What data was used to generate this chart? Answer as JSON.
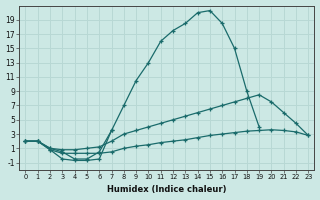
{
  "xlabel": "Humidex (Indice chaleur)",
  "background_color": "#cce8e4",
  "grid_color": "#b8d8d4",
  "line_color": "#1a6b6b",
  "ylim": [
    -2,
    21
  ],
  "xlim": [
    -0.5,
    23.5
  ],
  "yticks": [
    -1,
    1,
    3,
    5,
    7,
    9,
    11,
    13,
    15,
    17,
    19
  ],
  "xticks": [
    0,
    1,
    2,
    3,
    4,
    5,
    6,
    7,
    8,
    9,
    10,
    11,
    12,
    13,
    14,
    15,
    16,
    17,
    18,
    19,
    20,
    21,
    22,
    23
  ],
  "series": [
    {
      "x": [
        0,
        1,
        2,
        3,
        4,
        5,
        6,
        7,
        8,
        9,
        10,
        11,
        12,
        13,
        14,
        15,
        16,
        17,
        18,
        19
      ],
      "y": [
        2,
        2,
        1,
        0.5,
        -0.5,
        -0.5,
        0.5,
        3.5,
        7,
        10.5,
        13,
        16,
        17.5,
        18.5,
        20,
        20.3,
        18.5,
        15,
        9,
        4
      ]
    },
    {
      "x": [
        0,
        1,
        2,
        3,
        4,
        5,
        6,
        7
      ],
      "y": [
        2,
        2,
        0.8,
        -0.5,
        -0.7,
        -0.7,
        -0.5,
        3.5
      ]
    },
    {
      "x": [
        0,
        1,
        2,
        3,
        4,
        5,
        6,
        7,
        8,
        9,
        10,
        11,
        12,
        13,
        14,
        15,
        16,
        17,
        18,
        19,
        20,
        21,
        22,
        23
      ],
      "y": [
        2,
        2,
        1.0,
        0.8,
        0.8,
        1.0,
        1.2,
        2.0,
        3.0,
        3.5,
        4.0,
        4.5,
        5.0,
        5.5,
        6.0,
        6.5,
        7.0,
        7.5,
        8.0,
        8.5,
        7.5,
        6.0,
        4.5,
        2.8
      ]
    },
    {
      "x": [
        0,
        1,
        2,
        3,
        4,
        5,
        6,
        7,
        8,
        9,
        10,
        11,
        12,
        13,
        14,
        15,
        16,
        17,
        18,
        19,
        20,
        21,
        22,
        23
      ],
      "y": [
        2,
        2,
        0.8,
        0.3,
        0.3,
        0.3,
        0.3,
        0.5,
        1.0,
        1.3,
        1.5,
        1.8,
        2.0,
        2.2,
        2.5,
        2.8,
        3.0,
        3.2,
        3.4,
        3.5,
        3.6,
        3.5,
        3.3,
        2.8
      ]
    }
  ]
}
